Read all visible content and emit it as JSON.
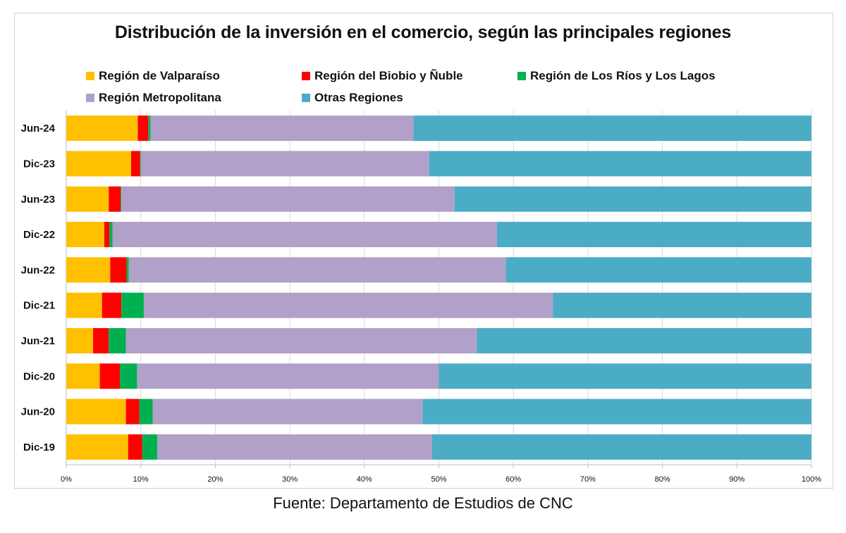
{
  "chart_data": {
    "type": "bar",
    "orientation": "horizontal",
    "stacked": "percent",
    "title": "Distribución de la inversión en el comercio, según las principales regiones",
    "xlabel": "",
    "ylabel": "",
    "xlim": [
      0,
      100
    ],
    "grid": true,
    "legend_position": "top",
    "categories": [
      "Jun-24",
      "Dic-23",
      "Jun-23",
      "Dic-22",
      "Jun-22",
      "Dic-21",
      "Jun-21",
      "Dic-20",
      "Jun-20",
      "Dic-19"
    ],
    "series": [
      {
        "name": "Región de Valparaíso",
        "color": "#FFC000",
        "values": [
          9.6,
          8.7,
          5.7,
          5.1,
          5.9,
          4.8,
          3.6,
          4.5,
          8.0,
          8.3
        ]
      },
      {
        "name": "Región del Biobio y Ñuble",
        "color": "#FF0000",
        "values": [
          1.4,
          1.2,
          1.6,
          0.7,
          2.2,
          2.6,
          2.1,
          2.7,
          1.8,
          1.9
        ]
      },
      {
        "name": "Región de Los Ríos y Los Lagos",
        "color": "#00B050",
        "values": [
          0.3,
          0.1,
          0.1,
          0.4,
          0.3,
          3.0,
          2.3,
          2.3,
          1.8,
          2.0
        ]
      },
      {
        "name": "Región Metropolitana",
        "color": "#B1A0C7",
        "values": [
          35.3,
          38.7,
          44.7,
          51.6,
          50.6,
          54.9,
          47.1,
          40.5,
          36.2,
          36.9
        ]
      },
      {
        "name": "Otras Regiones",
        "color": "#4BACC6",
        "values": [
          53.4,
          51.3,
          47.9,
          42.2,
          41.0,
          34.7,
          44.9,
          50.0,
          52.2,
          50.9
        ]
      }
    ],
    "tick_labels": [
      "0%",
      "10%",
      "20%",
      "30%",
      "40%",
      "50%",
      "60%",
      "70%",
      "80%",
      "90%",
      "100%"
    ],
    "source": "Fuente: Departamento de Estudios de CNC"
  }
}
